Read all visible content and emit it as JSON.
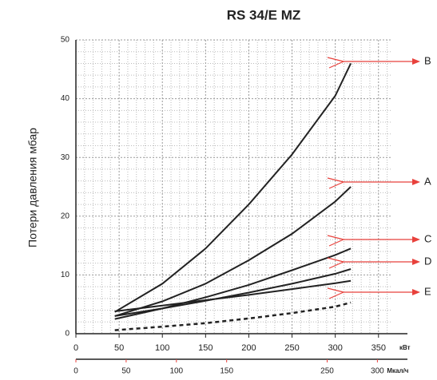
{
  "chart_data": {
    "type": "line",
    "title": "RS 34/E MZ",
    "ylabel": "Потери давления   мбар",
    "xunit": "кВт",
    "x2unit": "Мкал/ч",
    "x": [
      45,
      100,
      150,
      200,
      250,
      300,
      318
    ],
    "series": [
      {
        "name": "B",
        "color": "#222222",
        "values": [
          3.7,
          8.5,
          14.5,
          22,
          30.5,
          40.5,
          46
        ]
      },
      {
        "name": "A",
        "color": "#222222",
        "values": [
          3.0,
          5.5,
          8.5,
          12.5,
          17,
          22.5,
          25
        ]
      },
      {
        "name": "C",
        "color": "#222222",
        "values": [
          2.5,
          4.3,
          6.2,
          8.3,
          10.8,
          13.4,
          14.5
        ]
      },
      {
        "name": "D",
        "color": "#222222",
        "values": [
          3.0,
          4.3,
          5.6,
          7.0,
          8.5,
          10.2,
          11
        ]
      },
      {
        "name": "E",
        "color": "#222222",
        "values": [
          3.8,
          4.8,
          5.7,
          6.6,
          7.6,
          8.6,
          9
        ]
      },
      {
        "color": "#222222",
        "dashed": true,
        "values": [
          0.6,
          1.2,
          1.8,
          2.6,
          3.5,
          4.6,
          5.3
        ]
      }
    ],
    "xlim": [
      0,
      365
    ],
    "xticks": [
      0,
      50,
      100,
      150,
      200,
      250,
      300,
      350
    ],
    "x2lim": [
      0,
      314
    ],
    "x2ticks": [
      0,
      50,
      100,
      150,
      250,
      300
    ],
    "ylim": [
      0,
      50
    ],
    "yticks": [
      0,
      10,
      20,
      30,
      40,
      50
    ],
    "grid": true,
    "annotation_color": "#e8413c"
  }
}
